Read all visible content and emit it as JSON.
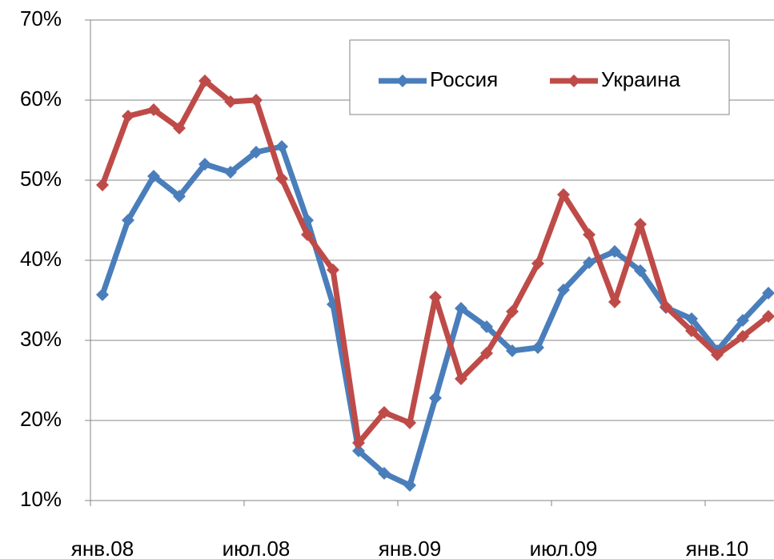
{
  "chart_data": {
    "type": "line",
    "categories": [
      "янв.08",
      null,
      null,
      null,
      null,
      null,
      "июл.08",
      null,
      null,
      null,
      null,
      null,
      "янв.09",
      null,
      null,
      null,
      null,
      null,
      "июл.09",
      null,
      null,
      null,
      null,
      null,
      "янв.10",
      null,
      null
    ],
    "series": [
      {
        "name": "Россия",
        "color": "#4a7ebb",
        "values": [
          35.7,
          45,
          50.5,
          48,
          52,
          51,
          53.5,
          54.2,
          45,
          34.5,
          16.2,
          13.4,
          11.9,
          22.8,
          34,
          31.7,
          28.7,
          29.1,
          36.3,
          39.7,
          41.1,
          38.7,
          34.1,
          32.7,
          28.7,
          32.5,
          35.9
        ]
      },
      {
        "name": "Украина",
        "color": "#be4b48",
        "values": [
          49.4,
          58,
          58.8,
          56.5,
          62.4,
          59.8,
          60,
          50.2,
          43.2,
          38.8,
          17.2,
          21,
          19.7,
          35.4,
          25.2,
          28.4,
          33.6,
          39.6,
          48.2,
          43.2,
          34.8,
          44.5,
          34.2,
          31.2,
          28.2,
          30.5,
          33
        ]
      }
    ],
    "ylim": [
      10,
      70
    ],
    "yticks": [
      {
        "value": 10,
        "label": "10%"
      },
      {
        "value": 20,
        "label": "20%"
      },
      {
        "value": 30,
        "label": "30%"
      },
      {
        "value": 40,
        "label": "40%"
      },
      {
        "value": 50,
        "label": "50%"
      },
      {
        "value": 60,
        "label": "60%"
      },
      {
        "value": 70,
        "label": "70%"
      }
    ],
    "grid": true,
    "legend": "top-right"
  }
}
